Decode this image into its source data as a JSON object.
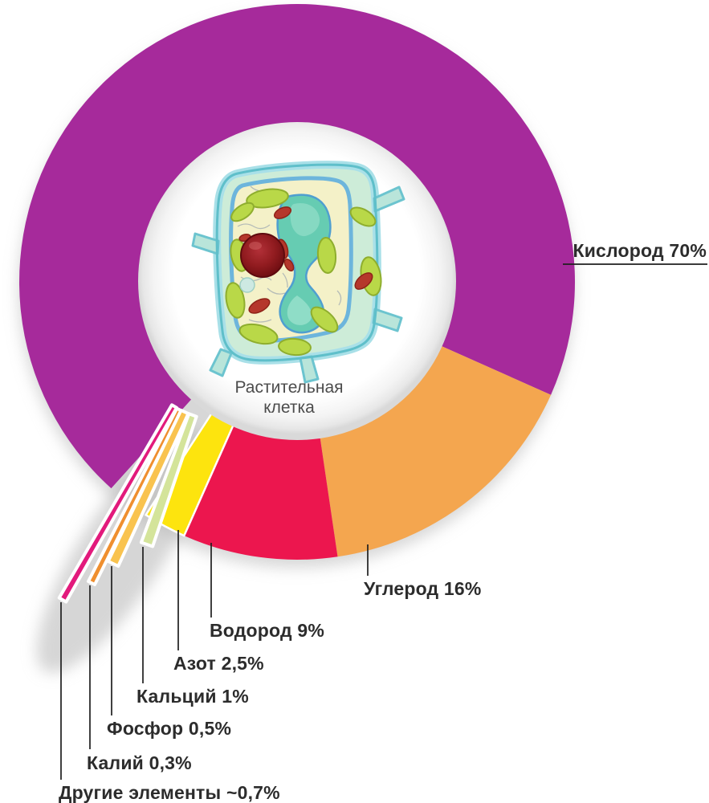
{
  "page": {
    "background": "#ffffff"
  },
  "chart_data": {
    "type": "pie",
    "title": "",
    "unit": "%",
    "legend_position": "none",
    "label_style": "callout-lines",
    "center_label": {
      "line1": "Растительная",
      "line2": "клетка"
    },
    "segments": [
      {
        "label": "Кислород",
        "value": 70,
        "display": "Кислород 70%",
        "color": "#a62a9b"
      },
      {
        "label": "Углерод",
        "value": 16,
        "display": "Углерод 16%",
        "color": "#f4a64f"
      },
      {
        "label": "Водород",
        "value": 9,
        "display": "Водород 9%",
        "color": "#ec164e"
      },
      {
        "label": "Азот",
        "value": 2.5,
        "display": "Азот 2,5%",
        "color": "#fde40e"
      },
      {
        "label": "Кальций",
        "value": 1,
        "display": "Кальций 1%",
        "color": "#d4e49a"
      },
      {
        "label": "Фосфор",
        "value": 0.5,
        "display": "Фосфор 0,5%",
        "color": "#f9c34f"
      },
      {
        "label": "Калий",
        "value": 0.3,
        "display": "Калий 0,3%",
        "color": "#ef8f2f"
      },
      {
        "label": "Другие элементы",
        "value": 0.7,
        "display": "Другие элементы ~0,7%",
        "color": "#e21a7c"
      }
    ],
    "layout": {
      "center": [
        370,
        351
      ],
      "radius": 346,
      "hole_radius": 198,
      "start_angle_deg": 132,
      "exploded_segments": [
        "Кальций",
        "Фосфор",
        "Калий",
        "Другие элементы"
      ]
    }
  }
}
